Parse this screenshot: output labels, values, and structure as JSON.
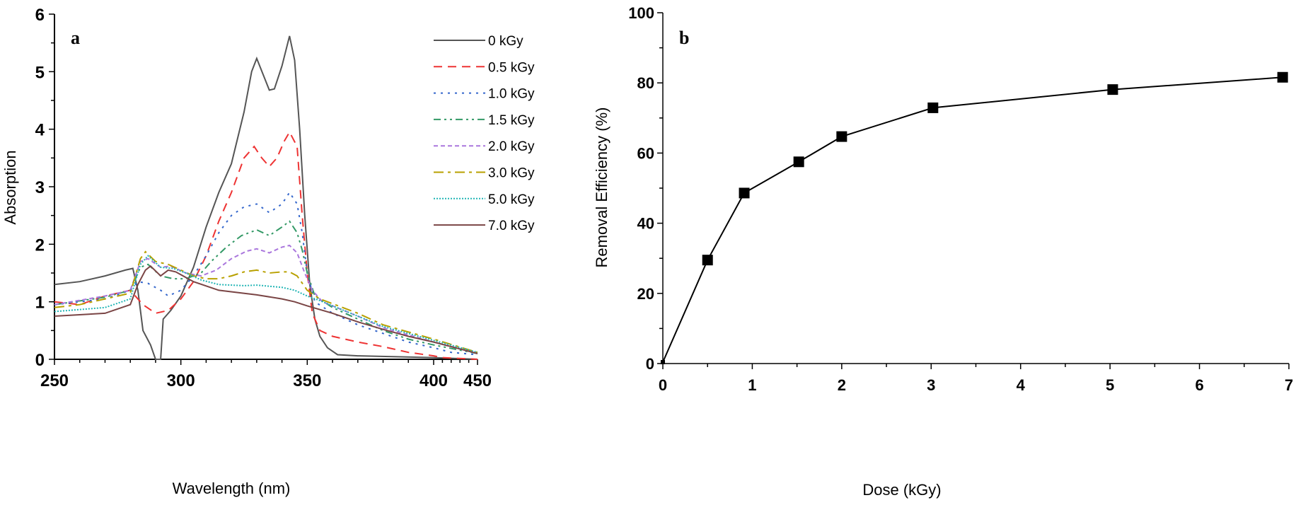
{
  "chart_data": [
    {
      "type": "line",
      "panel_label": "a",
      "xlabel": "Wavelength (nm)",
      "ylabel": "Absorption",
      "xlim": [
        250,
        450
      ],
      "ylim": [
        0,
        6
      ],
      "xticks": [
        "250",
        "300",
        "350",
        "400",
        "450"
      ],
      "yticks": [
        "0",
        "1",
        "2",
        "3",
        "4",
        "5",
        "6"
      ],
      "legend_position": "top-right",
      "series": [
        {
          "name": "0 kGy",
          "color": "#555555",
          "dash": "solid",
          "points": [
            [
              250,
              1.3
            ],
            [
              260,
              1.35
            ],
            [
              270,
              1.45
            ],
            [
              278,
              1.55
            ],
            [
              281,
              1.58
            ],
            [
              283,
              1.2
            ],
            [
              285,
              0.5
            ],
            [
              288,
              0.25
            ],
            [
              290,
              0
            ],
            [
              292,
              0
            ],
            [
              293,
              0.7
            ],
            [
              296,
              0.85
            ],
            [
              300,
              1.1
            ],
            [
              305,
              1.6
            ],
            [
              310,
              2.3
            ],
            [
              315,
              2.9
            ],
            [
              320,
              3.4
            ],
            [
              325,
              4.3
            ],
            [
              328,
              5.0
            ],
            [
              330,
              5.23
            ],
            [
              333,
              4.9
            ],
            [
              335,
              4.68
            ],
            [
              337,
              4.7
            ],
            [
              340,
              5.1
            ],
            [
              343,
              5.62
            ],
            [
              345,
              5.2
            ],
            [
              347,
              4.0
            ],
            [
              349,
              2.5
            ],
            [
              351,
              1.3
            ],
            [
              353,
              0.7
            ],
            [
              355,
              0.4
            ],
            [
              358,
              0.2
            ],
            [
              362,
              0.08
            ],
            [
              370,
              0.06
            ],
            [
              400,
              0.03
            ],
            [
              450,
              0.0
            ]
          ]
        },
        {
          "name": "0.5 kGy",
          "color": "#ee3333",
          "dash": "dash",
          "points": [
            [
              250,
              1.0
            ],
            [
              260,
              0.95
            ],
            [
              270,
              1.1
            ],
            [
              280,
              1.2
            ],
            [
              283,
              1.05
            ],
            [
              285,
              0.95
            ],
            [
              290,
              0.8
            ],
            [
              295,
              0.85
            ],
            [
              300,
              1.05
            ],
            [
              305,
              1.35
            ],
            [
              310,
              1.8
            ],
            [
              315,
              2.4
            ],
            [
              320,
              2.9
            ],
            [
              325,
              3.5
            ],
            [
              329,
              3.7
            ],
            [
              332,
              3.5
            ],
            [
              335,
              3.35
            ],
            [
              338,
              3.5
            ],
            [
              341,
              3.8
            ],
            [
              343,
              3.95
            ],
            [
              346,
              3.7
            ],
            [
              348,
              2.5
            ],
            [
              350,
              1.5
            ],
            [
              352,
              0.8
            ],
            [
              355,
              0.5
            ],
            [
              360,
              0.4
            ],
            [
              370,
              0.3
            ],
            [
              380,
              0.22
            ],
            [
              390,
              0.12
            ],
            [
              400,
              0.06
            ],
            [
              410,
              0.03
            ],
            [
              450,
              0.0
            ]
          ]
        },
        {
          "name": "1.0 kGy",
          "color": "#3366cc",
          "dash": "dot",
          "points": [
            [
              250,
              0.95
            ],
            [
              270,
              1.05
            ],
            [
              280,
              1.2
            ],
            [
              283,
              1.35
            ],
            [
              287,
              1.32
            ],
            [
              292,
              1.2
            ],
            [
              295,
              1.1
            ],
            [
              300,
              1.2
            ],
            [
              305,
              1.45
            ],
            [
              310,
              1.8
            ],
            [
              315,
              2.2
            ],
            [
              320,
              2.5
            ],
            [
              325,
              2.65
            ],
            [
              330,
              2.7
            ],
            [
              335,
              2.55
            ],
            [
              340,
              2.7
            ],
            [
              343,
              2.9
            ],
            [
              346,
              2.7
            ],
            [
              348,
              2.2
            ],
            [
              350,
              1.5
            ],
            [
              353,
              1.0
            ],
            [
              360,
              0.8
            ],
            [
              370,
              0.6
            ],
            [
              380,
              0.45
            ],
            [
              390,
              0.3
            ],
            [
              400,
              0.2
            ],
            [
              420,
              0.12
            ],
            [
              450,
              0.08
            ]
          ]
        },
        {
          "name": "1.5 kGy",
          "color": "#339966",
          "dash": "dashdotdot",
          "points": [
            [
              250,
              0.95
            ],
            [
              270,
              1.08
            ],
            [
              280,
              1.2
            ],
            [
              284,
              1.6
            ],
            [
              287,
              1.65
            ],
            [
              292,
              1.45
            ],
            [
              297,
              1.4
            ],
            [
              302,
              1.4
            ],
            [
              308,
              1.5
            ],
            [
              312,
              1.7
            ],
            [
              318,
              1.95
            ],
            [
              324,
              2.15
            ],
            [
              330,
              2.25
            ],
            [
              335,
              2.15
            ],
            [
              340,
              2.3
            ],
            [
              343,
              2.4
            ],
            [
              346,
              2.2
            ],
            [
              348,
              1.9
            ],
            [
              350,
              1.5
            ],
            [
              353,
              1.1
            ],
            [
              360,
              0.9
            ],
            [
              370,
              0.7
            ],
            [
              380,
              0.5
            ],
            [
              390,
              0.35
            ],
            [
              400,
              0.25
            ],
            [
              450,
              0.1
            ]
          ]
        },
        {
          "name": "2.0 kGy",
          "color": "#aa77dd",
          "dash": "shortdash",
          "points": [
            [
              250,
              0.95
            ],
            [
              270,
              1.1
            ],
            [
              280,
              1.2
            ],
            [
              284,
              1.7
            ],
            [
              287,
              1.75
            ],
            [
              292,
              1.6
            ],
            [
              296,
              1.62
            ],
            [
              302,
              1.5
            ],
            [
              308,
              1.45
            ],
            [
              314,
              1.55
            ],
            [
              320,
              1.75
            ],
            [
              326,
              1.88
            ],
            [
              330,
              1.92
            ],
            [
              335,
              1.85
            ],
            [
              340,
              1.95
            ],
            [
              343,
              1.98
            ],
            [
              346,
              1.85
            ],
            [
              349,
              1.5
            ],
            [
              352,
              1.2
            ],
            [
              356,
              1.0
            ],
            [
              370,
              0.75
            ],
            [
              380,
              0.55
            ],
            [
              400,
              0.3
            ],
            [
              450,
              0.1
            ]
          ]
        },
        {
          "name": "3.0 kGy",
          "color": "#b8a000",
          "dash": "dashdot",
          "points": [
            [
              250,
              0.9
            ],
            [
              260,
              0.95
            ],
            [
              270,
              1.05
            ],
            [
              280,
              1.15
            ],
            [
              284,
              1.75
            ],
            [
              286,
              1.87
            ],
            [
              290,
              1.7
            ],
            [
              295,
              1.65
            ],
            [
              300,
              1.55
            ],
            [
              305,
              1.45
            ],
            [
              310,
              1.4
            ],
            [
              315,
              1.4
            ],
            [
              320,
              1.45
            ],
            [
              325,
              1.52
            ],
            [
              330,
              1.55
            ],
            [
              335,
              1.5
            ],
            [
              340,
              1.52
            ],
            [
              343,
              1.52
            ],
            [
              346,
              1.45
            ],
            [
              350,
              1.2
            ],
            [
              355,
              1.05
            ],
            [
              370,
              0.8
            ],
            [
              380,
              0.6
            ],
            [
              400,
              0.35
            ],
            [
              450,
              0.12
            ]
          ]
        },
        {
          "name": "5.0 kGy",
          "color": "#22b5b5",
          "dash": "finedot",
          "points": [
            [
              250,
              0.83
            ],
            [
              270,
              0.9
            ],
            [
              280,
              1.05
            ],
            [
              284,
              1.65
            ],
            [
              287,
              1.8
            ],
            [
              292,
              1.6
            ],
            [
              297,
              1.58
            ],
            [
              302,
              1.5
            ],
            [
              308,
              1.38
            ],
            [
              315,
              1.3
            ],
            [
              325,
              1.28
            ],
            [
              330,
              1.29
            ],
            [
              340,
              1.25
            ],
            [
              345,
              1.2
            ],
            [
              350,
              1.1
            ],
            [
              355,
              1.02
            ],
            [
              370,
              0.75
            ],
            [
              380,
              0.57
            ],
            [
              400,
              0.33
            ],
            [
              450,
              0.12
            ]
          ]
        },
        {
          "name": "7.0 kGy",
          "color": "#7a4545",
          "dash": "solid",
          "points": [
            [
              250,
              0.75
            ],
            [
              270,
              0.8
            ],
            [
              280,
              0.95
            ],
            [
              283,
              1.3
            ],
            [
              286,
              1.55
            ],
            [
              288,
              1.62
            ],
            [
              292,
              1.45
            ],
            [
              295,
              1.55
            ],
            [
              298,
              1.52
            ],
            [
              305,
              1.35
            ],
            [
              315,
              1.2
            ],
            [
              330,
              1.12
            ],
            [
              340,
              1.05
            ],
            [
              345,
              1.0
            ],
            [
              350,
              0.93
            ],
            [
              360,
              0.8
            ],
            [
              370,
              0.65
            ],
            [
              380,
              0.52
            ],
            [
              390,
              0.4
            ],
            [
              400,
              0.3
            ],
            [
              450,
              0.1
            ]
          ]
        }
      ]
    },
    {
      "type": "line",
      "panel_label": "b",
      "xlabel": "Dose (kGy)",
      "ylabel": "Removal Efficiency (%)",
      "xlim": [
        0,
        7
      ],
      "ylim": [
        0,
        100
      ],
      "xticks": [
        "0",
        "1",
        "2",
        "3",
        "4",
        "5",
        "6",
        "7"
      ],
      "yticks": [
        "0",
        "20",
        "40",
        "60",
        "80",
        "100"
      ],
      "marker": "square",
      "color": "#000000",
      "x": [
        0,
        0.5,
        0.91,
        1.52,
        2.0,
        3.02,
        5.03,
        6.93
      ],
      "y": [
        0.4,
        29.5,
        48.6,
        57.5,
        64.7,
        72.9,
        78.1,
        81.6
      ]
    }
  ]
}
